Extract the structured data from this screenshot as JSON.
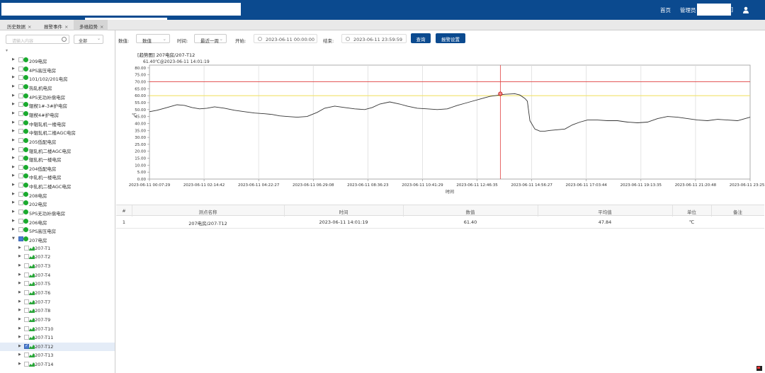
{
  "header": {
    "home_label": "首页",
    "admin_label": "管理员",
    "user_suffix": "]"
  },
  "tabs": [
    {
      "label": "历史数据"
    },
    {
      "label": "报警事件"
    },
    {
      "label": "多维趋势"
    }
  ],
  "sidebar": {
    "search_placeholder": "请输入内容",
    "filter_value": "全部",
    "nodes": [
      {
        "label": "209电房"
      },
      {
        "label": "4PS高压电房"
      },
      {
        "label": "101/102/201电房"
      },
      {
        "label": "热轧机电房"
      },
      {
        "label": "4PS无功补偿电房"
      },
      {
        "label": "辊楔1#-3#护电房"
      },
      {
        "label": "辊楔4#护电房"
      },
      {
        "label": "中辊轧机一楼电房"
      },
      {
        "label": "中辊轧机二楼AGC电房"
      },
      {
        "label": "205低配电房"
      },
      {
        "label": "辊轧机二楼AGC电房"
      },
      {
        "label": "辊轧机一楼电房"
      },
      {
        "label": "204低配电房"
      },
      {
        "label": "中轧机一楼电房"
      },
      {
        "label": "中轧机二楼AGC电房"
      },
      {
        "label": "208电房"
      },
      {
        "label": "202电房"
      },
      {
        "label": "5PS无功补偿电房"
      },
      {
        "label": "206电房"
      },
      {
        "label": "5PS高压电房"
      },
      {
        "label": "207电房"
      }
    ],
    "children": [
      {
        "label": "207-T1",
        "checked": false
      },
      {
        "label": "207-T2",
        "checked": false
      },
      {
        "label": "207-T3",
        "checked": false
      },
      {
        "label": "207-T4",
        "checked": false
      },
      {
        "label": "207-T5",
        "checked": false
      },
      {
        "label": "207-T6",
        "checked": false
      },
      {
        "label": "207-T7",
        "checked": false
      },
      {
        "label": "207-T8",
        "checked": false
      },
      {
        "label": "207-T9",
        "checked": false
      },
      {
        "label": "207-T10",
        "checked": false
      },
      {
        "label": "207-T11",
        "checked": false
      },
      {
        "label": "207-T12",
        "checked": true
      },
      {
        "label": "207-T13",
        "checked": false
      },
      {
        "label": "207-T14",
        "checked": false
      }
    ]
  },
  "filters": {
    "value_label": "数值:",
    "value_select": "数值",
    "time_label": "时间:",
    "time_select": "最近一周",
    "start_label": "开始:",
    "start_value": "2023-06-11 00:00:00",
    "end_label": "结束:",
    "end_value": "2023-06-11 23:59:59",
    "query_button": "查询",
    "alarm_button": "报警设置"
  },
  "chart_title": "[趋势图] 207电房/207-T12",
  "chart_tooltip": "61.40℃@2023-06-11 14:01:19",
  "chart_data": {
    "type": "line",
    "xlabel": "时间",
    "ylabel": "℃",
    "ylim": [
      0,
      82
    ],
    "yticks": [
      "0.00",
      "5.00",
      "10.00",
      "15.00",
      "20.00",
      "25.00",
      "30.00",
      "35.00",
      "40.00",
      "45.00",
      "50.00",
      "55.00",
      "60.00",
      "65.00",
      "70.00",
      "75.00",
      "80.00"
    ],
    "xticks": [
      "2023-06-11 00:07:29",
      "2023-06-11 02:14:42",
      "2023-06-11 04:22:27",
      "2023-06-11 06:29:08",
      "2023-06-11 08:36:23",
      "2023-06-11 10:41:29",
      "2023-06-11 12:46:35",
      "2023-06-11 14:56:27",
      "2023-06-11 17:03:44",
      "2023-06-11 19:13:35",
      "2023-06-11 21:20:48",
      "2023-06-11 23:25:23"
    ],
    "grid": true,
    "alarm_high": 70,
    "alarm_low": 60,
    "series": [
      {
        "color": "#333333",
        "x": [
          0,
          0.3,
          0.6,
          0.9,
          1.1,
          1.4,
          1.7,
          2.0,
          2.3,
          2.6,
          3.0,
          3.4,
          3.8,
          4.2,
          4.6,
          4.9,
          5.2,
          5.5,
          5.9,
          6.3,
          6.7,
          7.0,
          7.4,
          7.8,
          8.2,
          8.6,
          8.9,
          9.2,
          9.6,
          10.0,
          10.3,
          10.7,
          11.1,
          11.5,
          11.9,
          12.3,
          12.6,
          12.9,
          13.2,
          13.4,
          13.6,
          13.8,
          14.0,
          14.2,
          14.4,
          14.6,
          14.8,
          15.0,
          15.1,
          15.2,
          15.4,
          15.6,
          15.8,
          16.0,
          16.3,
          16.6,
          16.9,
          17.2,
          17.5,
          17.9,
          18.3,
          18.7,
          19.1,
          19.5,
          19.9,
          20.3,
          20.7,
          21.1,
          21.5,
          21.9,
          22.3,
          22.7,
          23.1,
          23.5,
          24.0
        ],
        "values": [
          48.5,
          49.5,
          51,
          52.5,
          53.5,
          53,
          51.5,
          50.5,
          51,
          52,
          51,
          49.5,
          48.5,
          47.5,
          47,
          46.5,
          45.5,
          45,
          44.5,
          45,
          48,
          51,
          52.5,
          51.5,
          50.5,
          50,
          51.5,
          54,
          55.5,
          54,
          52.5,
          51,
          50.5,
          50,
          50.5,
          53,
          54.5,
          56,
          57.5,
          58.5,
          59.5,
          60,
          60.5,
          61,
          61.2,
          61.4,
          60.5,
          58,
          56,
          42,
          36,
          34.5,
          34.5,
          35,
          35.5,
          36,
          39,
          41,
          42.5,
          42.5,
          42,
          42,
          41,
          40.5,
          41,
          43.5,
          45,
          44.5,
          43.5,
          42.5,
          42,
          43,
          42.5,
          42,
          44.5
        ]
      }
    ],
    "marker": {
      "x": 14.02,
      "y": 61.4
    }
  },
  "table": {
    "headers": [
      "#",
      "测点名称",
      "时间",
      "数值",
      "平均值",
      "单位",
      "备注"
    ],
    "rows": [
      [
        "1",
        "207电房/207-T12",
        "2023-06-11 14:01:19",
        "61.40",
        "47.84",
        "℃",
        ""
      ]
    ]
  },
  "colors": {
    "brand": "#0b4a8f",
    "status_ok": "#1aaa2e",
    "alarm_high": "#e04040",
    "alarm_low": "#f0e36a",
    "cursor": "#e04040"
  }
}
